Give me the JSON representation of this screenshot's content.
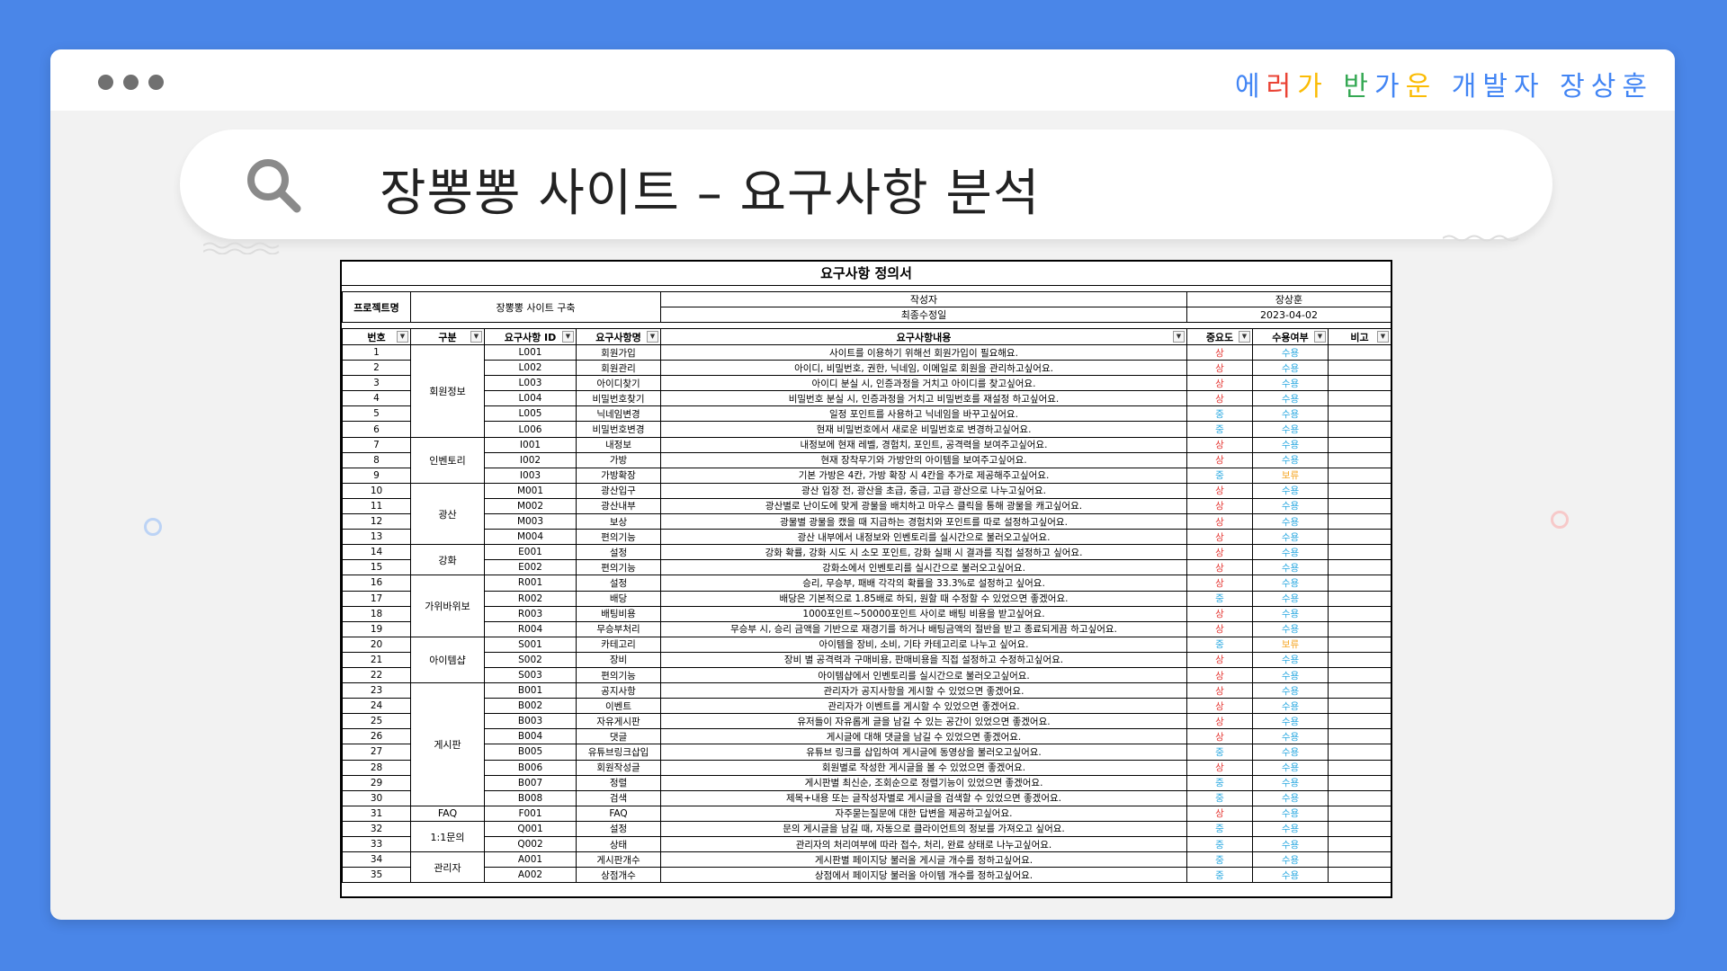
{
  "brand": {
    "letters": [
      {
        "ch": "에",
        "color": "#4285f4"
      },
      {
        "ch": "러",
        "color": "#ea4335"
      },
      {
        "ch": "가",
        "color": "#fbbc05"
      },
      {
        "ch": " ",
        "color": "#000000"
      },
      {
        "ch": "반",
        "color": "#34a853"
      },
      {
        "ch": "가",
        "color": "#4285f4"
      },
      {
        "ch": "운",
        "color": "#fbbc05"
      },
      {
        "ch": " ",
        "color": "#000000"
      },
      {
        "ch": "개",
        "color": "#4285f4"
      },
      {
        "ch": "발",
        "color": "#4285f4"
      },
      {
        "ch": "자",
        "color": "#4285f4"
      },
      {
        "ch": " ",
        "color": "#000000"
      },
      {
        "ch": "장",
        "color": "#4285f4"
      },
      {
        "ch": "상",
        "color": "#4285f4"
      },
      {
        "ch": "훈",
        "color": "#4285f4"
      }
    ]
  },
  "search": {
    "title": "장뽕뽕 사이트 – 요구사항 분석"
  },
  "sheet": {
    "title": "요구사항 정의서",
    "project_label": "프로젝트명",
    "project_name": "장뽕뽕 사이트 구축",
    "author_label": "작성자",
    "author": "장상훈",
    "modified_label": "최종수정일",
    "modified_date": "2023-04-02",
    "columns": [
      "번호",
      "구분",
      "요구사항 ID",
      "요구사항명",
      "요구사항내용",
      "중요도",
      "수용여부",
      "비고"
    ],
    "groups": [
      {
        "name": "회원정보",
        "span": 6
      },
      {
        "name": "인벤토리",
        "span": 3
      },
      {
        "name": "광산",
        "span": 4
      },
      {
        "name": "강화",
        "span": 2
      },
      {
        "name": "가위바위보",
        "span": 4
      },
      {
        "name": "아이템샵",
        "span": 3
      },
      {
        "name": "게시판",
        "span": 8
      },
      {
        "name": "FAQ",
        "span": 1
      },
      {
        "name": "1:1문의",
        "span": 2
      },
      {
        "name": "관리자",
        "span": 2
      }
    ],
    "rows": [
      {
        "no": "1",
        "id": "L001",
        "name": "회원가입",
        "content": "사이트를 이용하기 위해선 회원가입이 필요해요.",
        "imp": "상",
        "acc": "수용"
      },
      {
        "no": "2",
        "id": "L002",
        "name": "회원관리",
        "content": "아이디, 비밀번호, 권한, 닉네임, 이메일로 회원을 관리하고싶어요.",
        "imp": "상",
        "acc": "수용"
      },
      {
        "no": "3",
        "id": "L003",
        "name": "아이디찾기",
        "content": "아이디 분실 시, 인증과정을 거치고 아이디를 찾고싶어요.",
        "imp": "상",
        "acc": "수용"
      },
      {
        "no": "4",
        "id": "L004",
        "name": "비밀번호찾기",
        "content": "비밀번호 분실 시, 인증과정을 거치고 비밀번호를 재설정 하고싶어요.",
        "imp": "상",
        "acc": "수용"
      },
      {
        "no": "5",
        "id": "L005",
        "name": "닉네임변경",
        "content": "일정 포인트를 사용하고 닉네임을 바꾸고싶어요.",
        "imp": "중",
        "acc": "수용"
      },
      {
        "no": "6",
        "id": "L006",
        "name": "비밀번호변경",
        "content": "현재 비밀번호에서 새로운 비밀번호로 변경하고싶어요.",
        "imp": "중",
        "acc": "수용"
      },
      {
        "no": "7",
        "id": "I001",
        "name": "내정보",
        "content": "내정보에 현재 레벨, 경험치, 포인트, 공격력을 보여주고싶어요.",
        "imp": "상",
        "acc": "수용"
      },
      {
        "no": "8",
        "id": "I002",
        "name": "가방",
        "content": "현재 장착무기와 가방안의 아이템을 보여주고싶어요.",
        "imp": "상",
        "acc": "수용"
      },
      {
        "no": "9",
        "id": "I003",
        "name": "가방확장",
        "content": "기본 가방은 4칸, 가방 확장 시 4칸을 추가로 제공해주고싶어요.",
        "imp": "중",
        "acc": "보류"
      },
      {
        "no": "10",
        "id": "M001",
        "name": "광산입구",
        "content": "광산 입장 전, 광산을 초급, 중급, 고급 광산으로 나누고싶어요.",
        "imp": "상",
        "acc": "수용"
      },
      {
        "no": "11",
        "id": "M002",
        "name": "광산내부",
        "content": "광산별로 난이도에 맞게 광물을 배치하고 마우스 클릭을 통해 광물을 캐고싶어요.",
        "imp": "상",
        "acc": "수용"
      },
      {
        "no": "12",
        "id": "M003",
        "name": "보상",
        "content": "광물별 광물을 캤을 때 지급하는 경험치와 포인트를 따로 설정하고싶어요.",
        "imp": "상",
        "acc": "수용"
      },
      {
        "no": "13",
        "id": "M004",
        "name": "편의기능",
        "content": "광산 내부에서 내정보와 인벤토리를 실시간으로 불러오고싶어요.",
        "imp": "상",
        "acc": "수용"
      },
      {
        "no": "14",
        "id": "E001",
        "name": "설정",
        "content": "강화 확률, 강화 시도 시 소모 포인트, 강화 실패 시 결과를 직접 설정하고 싶어요.",
        "imp": "상",
        "acc": "수용"
      },
      {
        "no": "15",
        "id": "E002",
        "name": "편의기능",
        "content": "강화소에서 인벤토리를 실시간으로 불러오고싶어요.",
        "imp": "상",
        "acc": "수용"
      },
      {
        "no": "16",
        "id": "R001",
        "name": "설정",
        "content": "승리, 무승부, 패배 각각의 확률을 33.3%로 설정하고 싶어요.",
        "imp": "상",
        "acc": "수용"
      },
      {
        "no": "17",
        "id": "R002",
        "name": "배당",
        "content": "배당은 기본적으로 1.85배로 하되, 원할 때 수정할 수 있었으면 좋겠어요.",
        "imp": "중",
        "acc": "수용"
      },
      {
        "no": "18",
        "id": "R003",
        "name": "배팅비용",
        "content": "1000포인트~50000포인트 사이로 배팅 비용을 받고싶어요.",
        "imp": "상",
        "acc": "수용"
      },
      {
        "no": "19",
        "id": "R004",
        "name": "무승부처리",
        "content": "무승부 시, 승리 금액을 기반으로 재경기를 하거나 배팅금액의 절반을 받고 종료되게끔 하고싶어요.",
        "imp": "상",
        "acc": "수용"
      },
      {
        "no": "20",
        "id": "S001",
        "name": "카테고리",
        "content": "아이템을 장비, 소비, 기타 카테고리로 나누고 싶어요.",
        "imp": "중",
        "acc": "보류"
      },
      {
        "no": "21",
        "id": "S002",
        "name": "장비",
        "content": "장비 별 공격력과 구매비용, 판매비용을 직접 설정하고 수정하고싶어요.",
        "imp": "상",
        "acc": "수용"
      },
      {
        "no": "22",
        "id": "S003",
        "name": "편의기능",
        "content": "아이템샵에서 인벤토리를 실시간으로 불러오고싶어요.",
        "imp": "상",
        "acc": "수용"
      },
      {
        "no": "23",
        "id": "B001",
        "name": "공지사항",
        "content": "관리자가 공지사항을 게시할 수 있었으면 좋겠어요.",
        "imp": "상",
        "acc": "수용"
      },
      {
        "no": "24",
        "id": "B002",
        "name": "이벤트",
        "content": "관리자가 이벤트를 게시할 수 있었으면 좋겠어요.",
        "imp": "상",
        "acc": "수용"
      },
      {
        "no": "25",
        "id": "B003",
        "name": "자유게시판",
        "content": "유저들이 자유롭게 글을 남길 수 있는 공간이 있었으면 좋겠어요.",
        "imp": "상",
        "acc": "수용"
      },
      {
        "no": "26",
        "id": "B004",
        "name": "댓글",
        "content": "게시글에 대해 댓글을 남길 수 있었으면 좋겠어요.",
        "imp": "상",
        "acc": "수용"
      },
      {
        "no": "27",
        "id": "B005",
        "name": "유튜브링크삽입",
        "content": "유튜브 링크를 삽입하여 게시글에 동영상을 불러오고싶어요.",
        "imp": "중",
        "acc": "수용"
      },
      {
        "no": "28",
        "id": "B006",
        "name": "회원작성글",
        "content": "회원별로 작성한 게시글을 볼 수 있었으면 좋겠어요.",
        "imp": "상",
        "acc": "수용"
      },
      {
        "no": "29",
        "id": "B007",
        "name": "정렬",
        "content": "게시판별 최신순, 조회순으로 정렬기능이 있었으면 좋겠어요.",
        "imp": "중",
        "acc": "수용"
      },
      {
        "no": "30",
        "id": "B008",
        "name": "검색",
        "content": "제목+내용 또는 글작성자별로 게시글을 검색할 수 있었으면 좋겠어요.",
        "imp": "중",
        "acc": "수용"
      },
      {
        "no": "31",
        "id": "F001",
        "name": "FAQ",
        "content": "자주묻는질문에 대한 답변을 제공하고싶어요.",
        "imp": "상",
        "acc": "수용"
      },
      {
        "no": "32",
        "id": "Q001",
        "name": "설정",
        "content": "문의 게시글을 남길 때, 자동으로 클라이언트의 정보를 가져오고 싶어요.",
        "imp": "중",
        "acc": "수용"
      },
      {
        "no": "33",
        "id": "Q002",
        "name": "상태",
        "content": "관리자의 처리여부에 따라 접수, 처리, 완료 상태로 나누고싶어요.",
        "imp": "중",
        "acc": "수용"
      },
      {
        "no": "34",
        "id": "A001",
        "name": "게시판개수",
        "content": "게시판별 페이지당 불러올 게시글 개수를 정하고싶어요.",
        "imp": "중",
        "acc": "수용"
      },
      {
        "no": "35",
        "id": "A002",
        "name": "상점개수",
        "content": "상점에서 페이지당 불러올 아이템 개수를 정하고싶어요.",
        "imp": "중",
        "acc": "수용"
      }
    ]
  },
  "colors": {
    "background": "#4a86e8",
    "importance_high": "#e53935",
    "importance_mid": "#29a8e0",
    "accept": "#29a8e0",
    "hold": "#f5a623"
  },
  "icons": [
    "window-dot-icon",
    "search-icon",
    "dropdown-icon"
  ]
}
